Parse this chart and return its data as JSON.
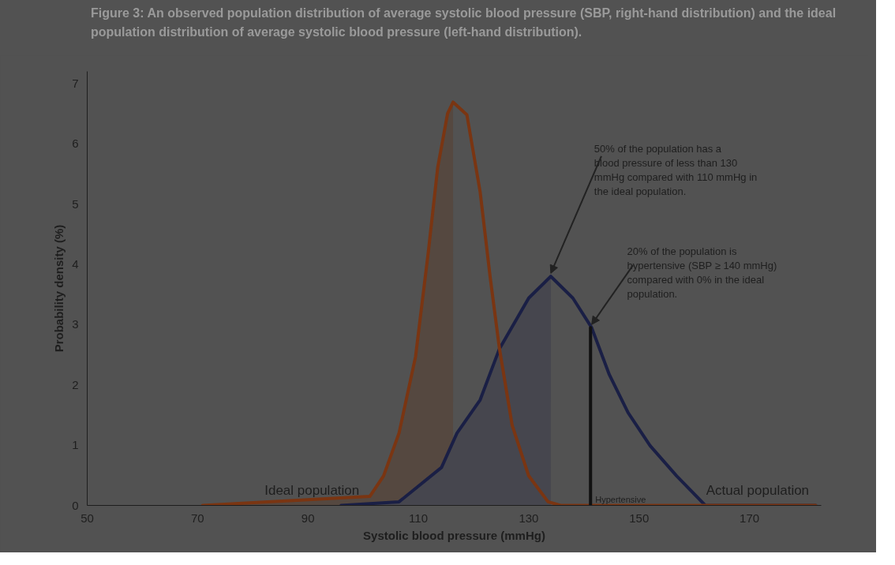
{
  "chart_data": {
    "type": "line",
    "title": "Figure 3: An observed population distribution of average systolic blood pressure (SBP, right-hand distribution) and the ideal population distribution of average systolic blood pressure (left-hand distribution).",
    "xlabel": "Systolic blood pressure (mmHg)",
    "ylabel": "Probability density (%)",
    "xlim": [
      50,
      183
    ],
    "ylim": [
      0,
      7.2
    ],
    "xticks": [
      50,
      70,
      90,
      110,
      130,
      150,
      170
    ],
    "yticks": [
      0,
      1,
      2,
      3,
      4,
      5,
      6,
      7
    ],
    "grid": false,
    "series": [
      {
        "type": "area",
        "color": "#554840",
        "x": [
          70.9,
          101.2,
          103.7,
          106.5,
          109.5,
          111.8,
          113.5,
          115.3,
          116.3
        ],
        "values": [
          0,
          0.15,
          0.49,
          1.2,
          2.47,
          4.2,
          5.6,
          6.5,
          6.69
        ]
      },
      {
        "type": "area",
        "color": "#46464e",
        "x": [
          96,
          106.5,
          114.2,
          117,
          121.2,
          124.7,
          130,
          134
        ],
        "values": [
          0,
          0.06,
          0.63,
          1.2,
          1.75,
          2.6,
          3.44,
          3.8
        ]
      },
      {
        "color": "#1a1f45",
        "x": [
          96,
          106.5,
          114.2,
          117,
          121.2,
          124.7,
          130,
          134,
          138,
          141.4,
          144.6,
          148,
          152,
          156.8,
          162,
          182
        ],
        "values": [
          0,
          0.06,
          0.63,
          1.2,
          1.75,
          2.6,
          3.44,
          3.8,
          3.44,
          2.95,
          2.17,
          1.54,
          0.99,
          0.49,
          0,
          0
        ]
      },
      {
        "color": "#7a3512",
        "x": [
          70.9,
          101.2,
          103.7,
          106.5,
          109.5,
          111.8,
          113.5,
          115.3,
          116.3,
          118.8,
          121.2,
          123,
          124.7,
          127,
          130,
          133.5,
          135.8,
          182
        ],
        "values": [
          0,
          0.15,
          0.49,
          1.2,
          2.47,
          4.2,
          5.6,
          6.5,
          6.69,
          6.48,
          5.2,
          3.8,
          2.6,
          1.33,
          0.49,
          0.06,
          0,
          0
        ]
      },
      {
        "color": "#111111",
        "x": [
          141.2,
          141.2
        ],
        "values": [
          0,
          2.95
        ]
      }
    ],
    "annotations": [
      {
        "text": "50% of the population has a blood pressure of less than 130 mmHg compared with 110 mmHg in the ideal population.",
        "x": 134,
        "y": 3.8
      },
      {
        "text": "20% of the population is hypertensive (SBP  ≥ 140 mmHg) compared with 0% in the ideal population.",
        "x": 141.4,
        "y": 2.95
      },
      {
        "text": "Ideal population",
        "x": 90,
        "y": 0
      },
      {
        "text": "Actual population",
        "x": 165,
        "y": 0
      },
      {
        "text": "Hypertensive",
        "x": 141.2,
        "y": 0
      }
    ]
  }
}
